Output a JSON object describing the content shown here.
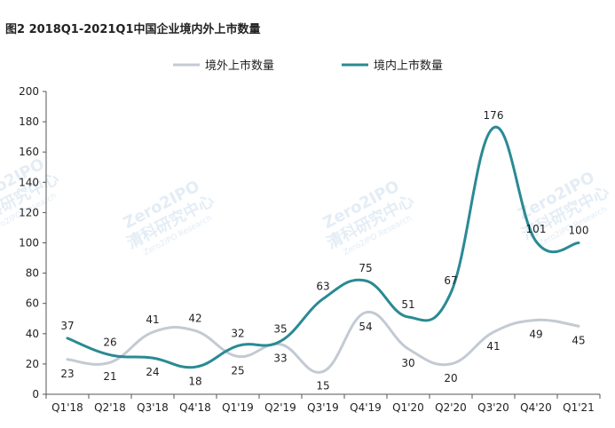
{
  "title": "图2  2018Q1-2021Q1中国企业境内外上市数量",
  "watermark": {
    "cn": "清科研究中心",
    "en": "Zero2IPO Research",
    "logo": "Zero2IPO"
  },
  "chart_data": {
    "type": "line",
    "categories": [
      "Q1'18",
      "Q2'18",
      "Q3'18",
      "Q4'18",
      "Q1'19",
      "Q2'19",
      "Q3'19",
      "Q4'19",
      "Q1'20",
      "Q2'20",
      "Q3'20",
      "Q4'20",
      "Q1'21"
    ],
    "series": [
      {
        "name": "境外上市数量",
        "color": "#c3cad3",
        "values": [
          23,
          21,
          41,
          42,
          25,
          33,
          15,
          54,
          30,
          20,
          41,
          49,
          45
        ]
      },
      {
        "name": "境内上市数量",
        "color": "#2a8a93",
        "values": [
          37,
          26,
          24,
          18,
          32,
          35,
          63,
          75,
          51,
          67,
          176,
          101,
          100
        ]
      }
    ],
    "ylim": [
      0,
      200
    ],
    "yticks": [
      0,
      20,
      40,
      60,
      80,
      100,
      120,
      140,
      160,
      180,
      200
    ],
    "legend_position": "top",
    "grid": false
  }
}
